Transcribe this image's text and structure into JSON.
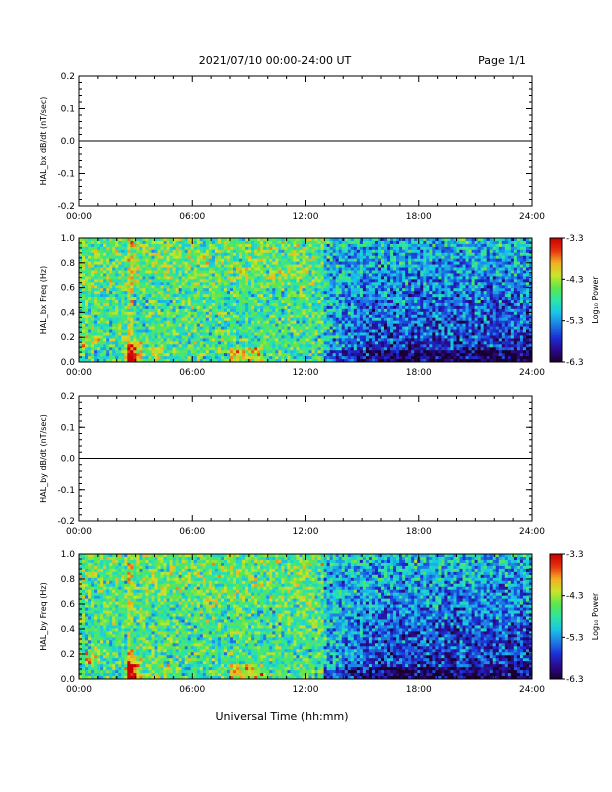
{
  "header": {
    "title": "2021/07/10  00:00-24:00 UT",
    "page": "Page 1/1"
  },
  "footer": {
    "xlabel": "Universal Time (hh:mm)"
  },
  "colors": {
    "frame": "#000000",
    "background": "#ffffff",
    "colormap": [
      "#1a0030",
      "#2b0a8c",
      "#1a2fd6",
      "#1e7de6",
      "#18c8e6",
      "#2ee6a0",
      "#5fe64a",
      "#c8e62a",
      "#f0b020",
      "#e83010",
      "#c80000"
    ]
  },
  "chart_data": [
    {
      "type": "line",
      "ylabel": "HAL_bx dB/dt (nT/sec)",
      "x_ticks": [
        "00:00",
        "06:00",
        "12:00",
        "18:00",
        "24:00"
      ],
      "y_ticks": [
        "0.2",
        "0.1",
        "0.0",
        "-0.1",
        "-0.2"
      ],
      "xlim": [
        0,
        24
      ],
      "ylim": [
        -0.2,
        0.2
      ],
      "series": [
        {
          "x": [
            0,
            24
          ],
          "values": [
            0.0,
            0.0
          ]
        }
      ]
    },
    {
      "type": "heatmap",
      "ylabel": "HAL_bx Freq (Hz)",
      "x_ticks": [
        "00:00",
        "06:00",
        "12:00",
        "18:00",
        "24:00"
      ],
      "y_ticks": [
        "1.0",
        "0.8",
        "0.6",
        "0.4",
        "0.2",
        "0.0"
      ],
      "xlim": [
        0,
        24
      ],
      "ylim": [
        0,
        1.0
      ],
      "colorbar": {
        "label": "Log₁₀ Power",
        "ticks": [
          "-3.3",
          "-4.3",
          "-5.3",
          "-6.3"
        ],
        "range": [
          -6.3,
          -3.3
        ]
      }
    },
    {
      "type": "line",
      "ylabel": "HAL_by dB/dt (nT/sec)",
      "x_ticks": [
        "00:00",
        "06:00",
        "12:00",
        "18:00",
        "24:00"
      ],
      "y_ticks": [
        "0.2",
        "0.1",
        "0.0",
        "-0.1",
        "-0.2"
      ],
      "xlim": [
        0,
        24
      ],
      "ylim": [
        -0.2,
        0.2
      ],
      "series": [
        {
          "x": [
            0,
            24
          ],
          "values": [
            0.0,
            0.0
          ]
        }
      ]
    },
    {
      "type": "heatmap",
      "ylabel": "HAL_by Freq (Hz)",
      "x_ticks": [
        "00:00",
        "06:00",
        "12:00",
        "18:00",
        "24:00"
      ],
      "y_ticks": [
        "1.0",
        "0.8",
        "0.6",
        "0.4",
        "0.2",
        "0.0"
      ],
      "xlim": [
        0,
        24
      ],
      "ylim": [
        0,
        1.0
      ],
      "colorbar": {
        "label": "Log₁₀ Power",
        "ticks": [
          "-3.3",
          "-4.3",
          "-5.3",
          "-6.3"
        ],
        "range": [
          -6.3,
          -3.3
        ]
      }
    }
  ]
}
